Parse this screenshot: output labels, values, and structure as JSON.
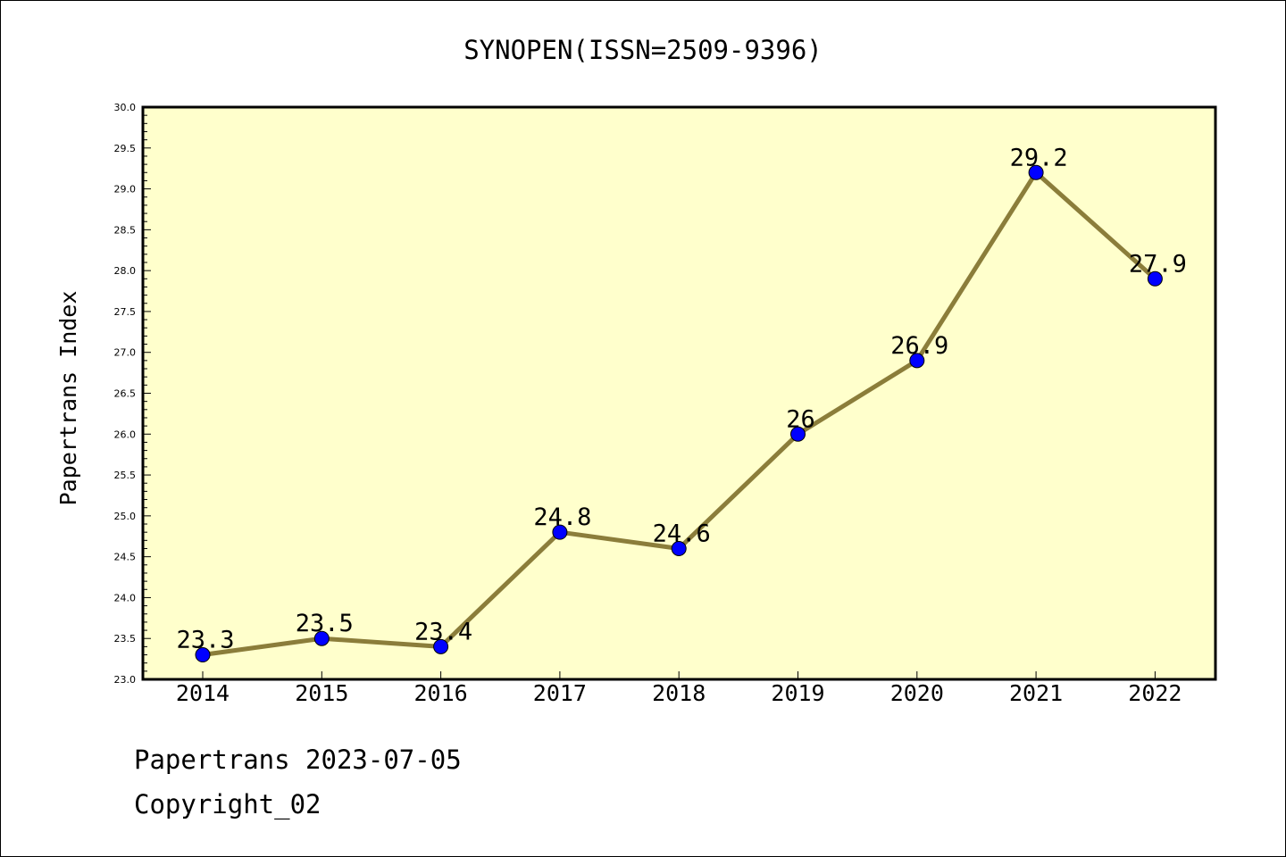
{
  "footer": {
    "line1": "Papertrans 2023-07-05",
    "line2": "Copyright_02"
  },
  "chart_data": {
    "type": "line",
    "title": "SYNOPEN(ISSN=2509-9396)",
    "xlabel": "",
    "ylabel": "Papertrans Index",
    "categories": [
      "2014",
      "2015",
      "2016",
      "2017",
      "2018",
      "2019",
      "2020",
      "2021",
      "2022"
    ],
    "series": [
      {
        "values": [
          23.3,
          23.5,
          23.4,
          24.8,
          24.6,
          26.0,
          26.9,
          29.2,
          27.9
        ],
        "labels": [
          "23.3",
          "23.5",
          "23.4",
          "24.8",
          "24.6",
          "26",
          "26.9",
          "29.2",
          "27.9"
        ]
      }
    ],
    "ylim": [
      23.0,
      30.0
    ],
    "yticks": [
      "23.0",
      "23.5",
      "24.0",
      "24.5",
      "25.0",
      "25.5",
      "26.0",
      "26.5",
      "27.0",
      "27.5",
      "28.0",
      "28.5",
      "29.0",
      "29.5",
      "30.0"
    ],
    "grid": false,
    "legend": "none",
    "colors": {
      "plot_background": "#ffffcc",
      "line": "#8b7d3a",
      "marker": "#0000ff",
      "axes": "#000000"
    }
  }
}
